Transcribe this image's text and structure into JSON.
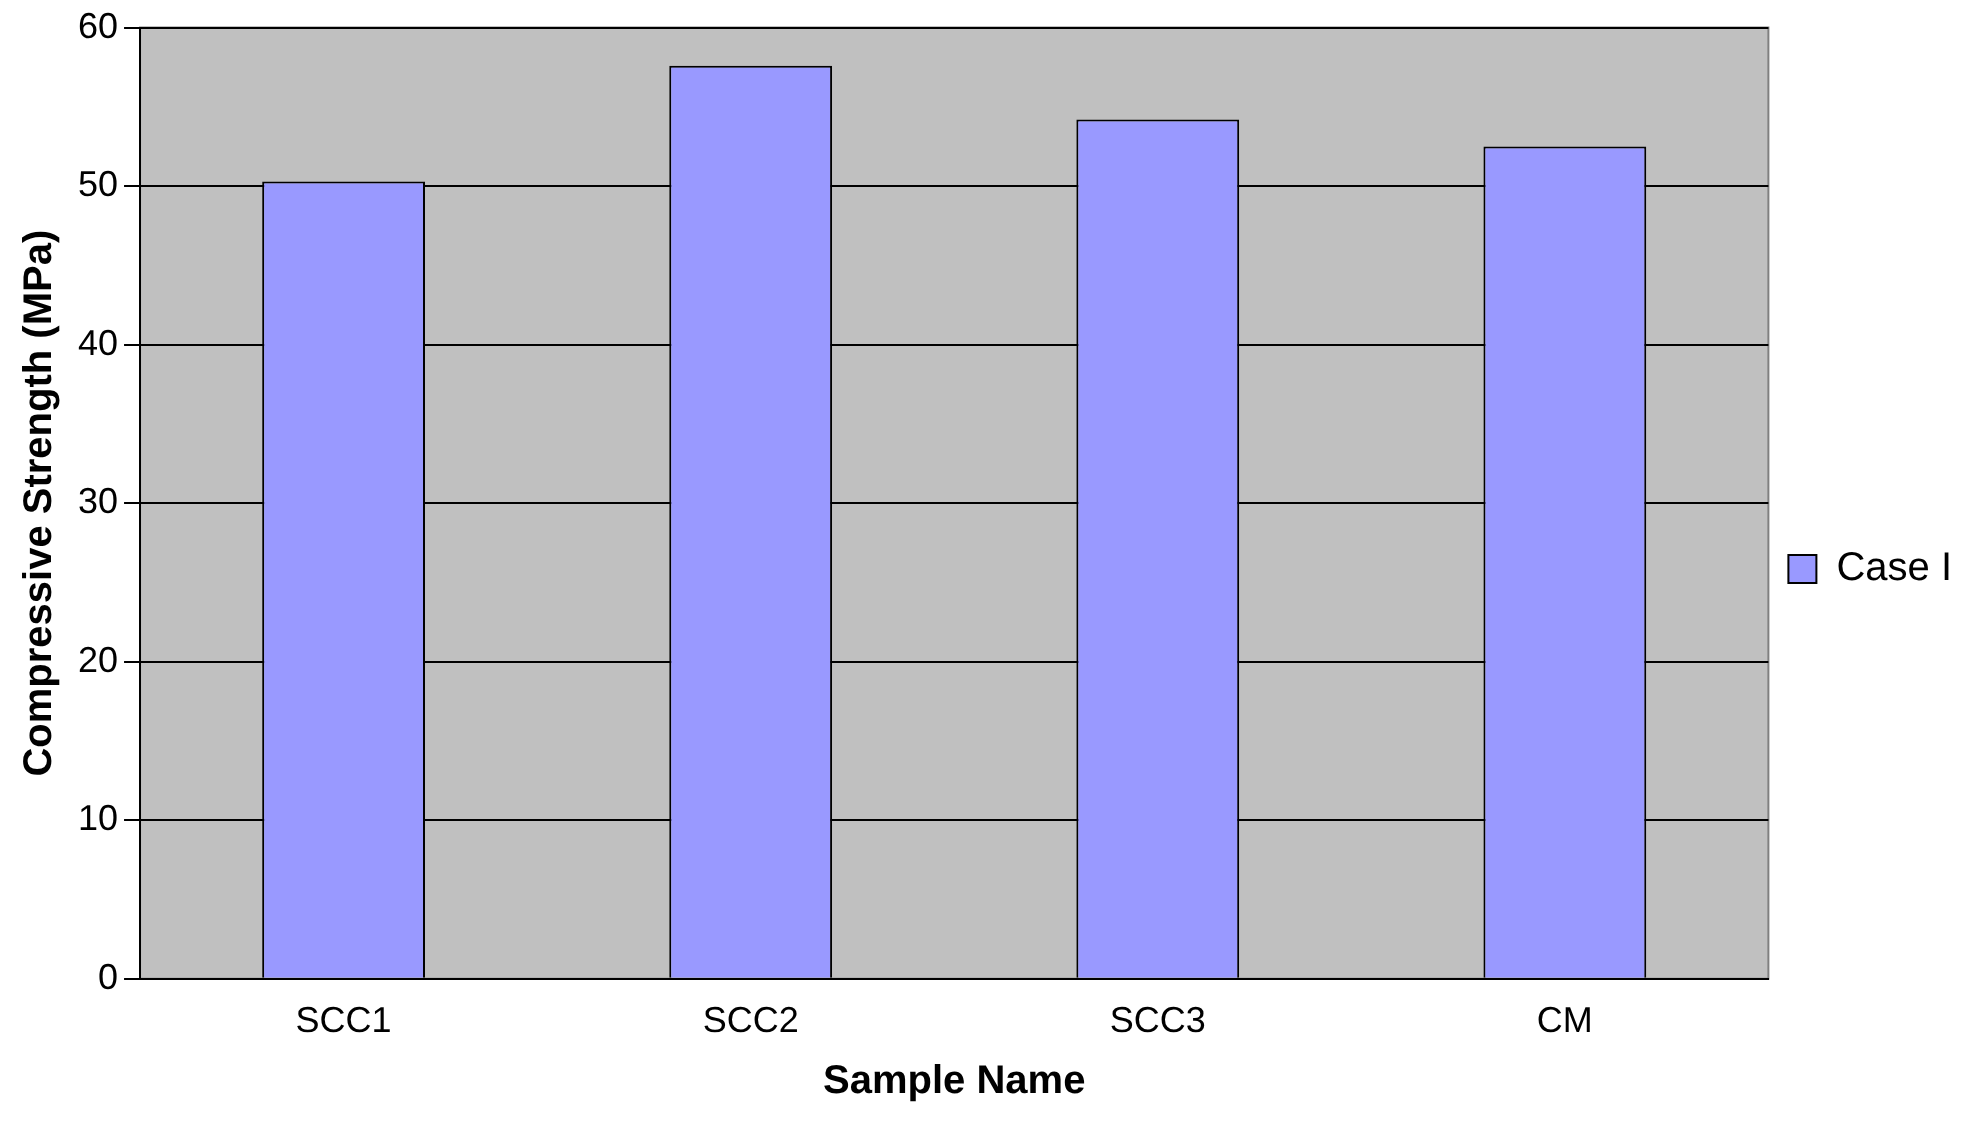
{
  "chart_data": {
    "type": "bar",
    "xlabel": "Sample Name",
    "ylabel": "Compressive Strength (MPa)",
    "categories": [
      "SCC1",
      "SCC2",
      "SCC3",
      "CM"
    ],
    "series": [
      {
        "name": "Case I",
        "color": "#9999ff",
        "values": [
          50.3,
          57.6,
          54.2,
          52.5
        ]
      }
    ],
    "ylim": [
      0,
      60
    ],
    "yticks": [
      0,
      10,
      20,
      30,
      40,
      50,
      60
    ],
    "grid": "y",
    "legend": "right"
  }
}
